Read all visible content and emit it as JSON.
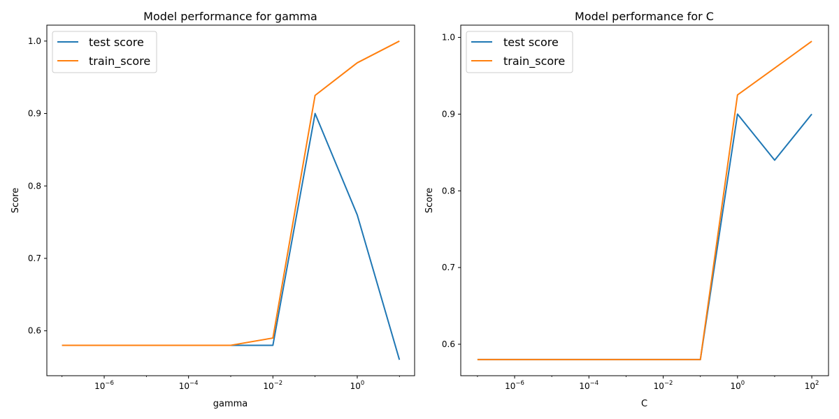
{
  "colors": {
    "test": "#1f77b4",
    "train": "#ff7f0e",
    "axis": "#000000",
    "legend_border": "#cccccc"
  },
  "chart_data": [
    {
      "type": "line",
      "title": "Model performance for gamma",
      "xlabel": "gamma",
      "ylabel": "Score",
      "xscale": "log",
      "x": [
        1e-07,
        1e-06,
        1e-05,
        0.0001,
        0.001,
        0.01,
        0.1,
        1,
        10
      ],
      "xlim_exp": [
        -7.36,
        1.36
      ],
      "ylim": [
        0.538,
        1.022
      ],
      "yticks": [
        "0.6",
        "0.7",
        "0.8",
        "0.9",
        "1.0"
      ],
      "ytick_values": [
        0.6,
        0.7,
        0.8,
        0.9,
        1.0
      ],
      "xtick_exponents": [
        -6,
        -4,
        -2,
        0
      ],
      "xtick_labels": [
        "10",
        "10",
        "10",
        "10"
      ],
      "xtick_sups": [
        "−6",
        "−4",
        "−2",
        "0"
      ],
      "legend_position": "upper-left",
      "series": [
        {
          "name": "test score",
          "values": [
            0.58,
            0.58,
            0.58,
            0.58,
            0.58,
            0.58,
            0.9,
            0.76,
            0.56
          ]
        },
        {
          "name": "train_score",
          "values": [
            0.58,
            0.58,
            0.58,
            0.58,
            0.58,
            0.59,
            0.925,
            0.97,
            1.0
          ]
        }
      ]
    },
    {
      "type": "line",
      "title": "Model performance for C",
      "xlabel": "C",
      "ylabel": "Score",
      "xscale": "log",
      "x": [
        1e-07,
        1e-06,
        1e-05,
        0.0001,
        0.001,
        0.01,
        0.1,
        1,
        10,
        100
      ],
      "xlim_exp": [
        -7.45,
        2.45
      ],
      "ylim": [
        0.559,
        1.016
      ],
      "yticks": [
        "0.6",
        "0.7",
        "0.8",
        "0.9",
        "1.0"
      ],
      "ytick_values": [
        0.6,
        0.7,
        0.8,
        0.9,
        1.0
      ],
      "xtick_exponents": [
        -6,
        -4,
        -2,
        0,
        2
      ],
      "xtick_labels": [
        "10",
        "10",
        "10",
        "10",
        "10"
      ],
      "xtick_sups": [
        "−6",
        "−4",
        "−2",
        "0",
        "2"
      ],
      "legend_position": "upper-left",
      "series": [
        {
          "name": "test score",
          "values": [
            0.58,
            0.58,
            0.58,
            0.58,
            0.58,
            0.58,
            0.58,
            0.9,
            0.84,
            0.9
          ]
        },
        {
          "name": "train_score",
          "values": [
            0.58,
            0.58,
            0.58,
            0.58,
            0.58,
            0.58,
            0.58,
            0.925,
            0.96,
            0.995
          ]
        }
      ]
    }
  ]
}
